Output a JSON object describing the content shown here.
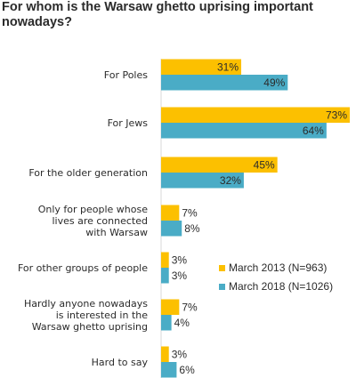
{
  "chart_data": {
    "type": "bar",
    "orientation": "horizontal",
    "title": "For whom is the Warsaw ghetto uprising important nowadays?",
    "categories": [
      [
        "For Poles"
      ],
      [
        "For Jews"
      ],
      [
        "For the older generation"
      ],
      [
        "Only for people whose",
        "lives are connected",
        "with Warsaw"
      ],
      [
        "For other groups of people"
      ],
      [
        "Hardly anyone nowadays",
        "is interested in the",
        "Warsaw ghetto uprising"
      ],
      [
        "Hard to say"
      ]
    ],
    "series": [
      {
        "name": "March 2013 (N=963)",
        "color": "#fcc000",
        "values": [
          31,
          73,
          45,
          7,
          3,
          7,
          3
        ],
        "labels": [
          "31%",
          "73%",
          "45%",
          "7%",
          "3%",
          "7%",
          "3%"
        ]
      },
      {
        "name": "March 2018 (N=1026)",
        "color": "#4aacc6",
        "values": [
          49,
          64,
          32,
          8,
          3,
          4,
          6
        ],
        "labels": [
          "49%",
          "64%",
          "32%",
          "8%",
          "3%",
          "4%",
          "6%"
        ]
      }
    ],
    "xlim": [
      0,
      73
    ],
    "legend_position": "right",
    "grid": false
  }
}
